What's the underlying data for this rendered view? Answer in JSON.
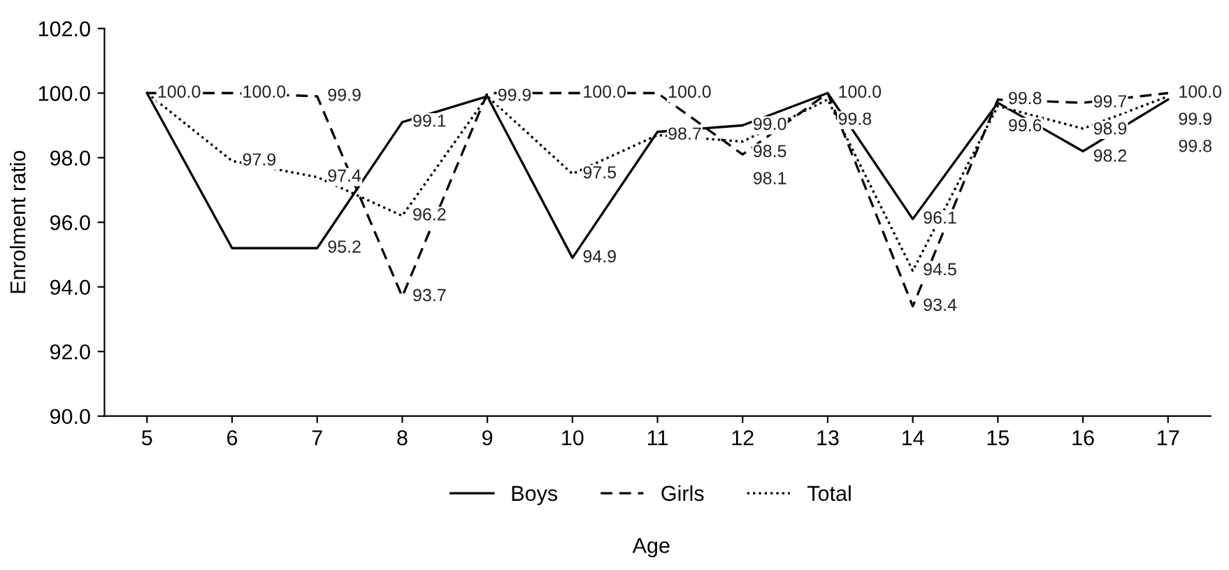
{
  "chart_data": {
    "type": "line",
    "xlabel": "Age",
    "ylabel": "Enrolment ratio",
    "categories": [
      "5",
      "6",
      "7",
      "8",
      "9",
      "10",
      "11",
      "12",
      "13",
      "14",
      "15",
      "16",
      "17"
    ],
    "series": [
      {
        "name": "Boys",
        "color": "#000000",
        "line_style": "solid",
        "values": [
          100.0,
          95.2,
          95.2,
          99.1,
          99.9,
          94.9,
          98.8,
          99.0,
          100.0,
          96.1,
          99.7,
          98.2,
          99.8
        ],
        "value_labels": [
          null,
          null,
          "95.2",
          "99.1",
          "99.9",
          "94.9",
          null,
          "99.0",
          "100.0",
          "96.1",
          null,
          "98.2",
          "99.8"
        ]
      },
      {
        "name": "Girls",
        "color": "#000000",
        "line_style": "dashed",
        "values": [
          100.0,
          100.0,
          99.9,
          93.7,
          100.0,
          100.0,
          100.0,
          98.1,
          100.0,
          93.4,
          99.8,
          99.7,
          100.0
        ],
        "value_labels": [
          "100.0",
          "100.0",
          "99.9",
          "93.7",
          null,
          "100.0",
          "100.0",
          "98.1",
          null,
          "93.4",
          "99.8",
          "99.7",
          "100.0"
        ]
      },
      {
        "name": "Total",
        "color": "#000000",
        "line_style": "dotted",
        "values": [
          100.0,
          97.9,
          97.4,
          96.2,
          99.9,
          97.5,
          98.7,
          98.5,
          99.8,
          94.5,
          99.6,
          98.9,
          99.9
        ],
        "value_labels": [
          null,
          "97.9",
          "97.4",
          "96.2",
          null,
          "97.5",
          "98.7",
          "98.5",
          "99.8",
          "94.5",
          "99.6",
          "98.9",
          "99.9"
        ]
      }
    ],
    "ylim": [
      90.0,
      102.0
    ],
    "yticks": [
      {
        "value": 90,
        "label": "90.0"
      },
      {
        "value": 92,
        "label": "92.0"
      },
      {
        "value": 94,
        "label": "94.0"
      },
      {
        "value": 96,
        "label": "96.0"
      },
      {
        "value": 98,
        "label": "98.0"
      },
      {
        "value": 100,
        "label": "100.0"
      },
      {
        "value": 102,
        "label": "102.0"
      }
    ],
    "legend": "bottom",
    "grid": false,
    "marker": "none"
  }
}
